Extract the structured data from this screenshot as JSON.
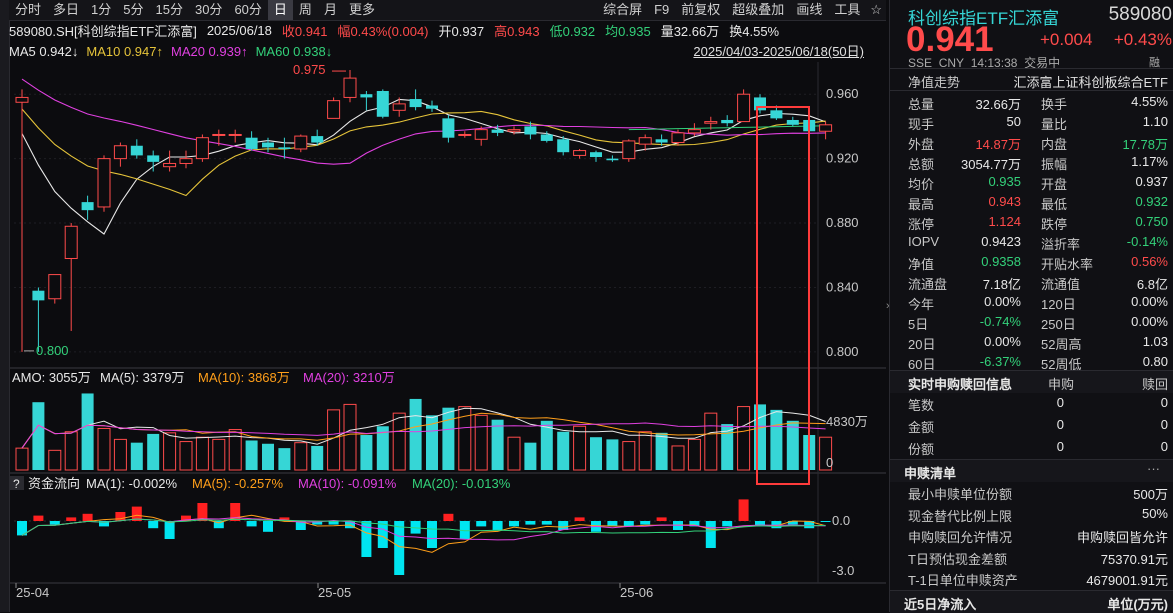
{
  "toolbar": {
    "left": [
      "分时",
      "多日",
      "1分",
      "5分",
      "15分",
      "30分",
      "60分",
      "日",
      "周",
      "月",
      "更多"
    ],
    "active_index": 7,
    "right": [
      "综合屏",
      "F9",
      "前复权",
      "超级叠加",
      "画线",
      "工具"
    ],
    "star": "☆"
  },
  "info": {
    "code_name": "589080.SH[科创综指ETF汇添富]",
    "date": "2025/06/18",
    "close": "收0.941",
    "change": "幅0.43%(0.004)",
    "open": "开0.937",
    "high": "高0.943",
    "low": "低0.932",
    "avg": "均0.935",
    "volume": "量32.66万",
    "turnover": "换4.55%"
  },
  "ma_bar": {
    "ma5": "MA5 0.942↓",
    "ma10": "MA10 0.947↑",
    "ma20": "MA20 0.939↑",
    "ma60": "MA60 0.938↓",
    "date_range": "2025/04/03-2025/06/18(50日)"
  },
  "price_axis": [
    "0.960",
    "0.920",
    "0.880",
    "0.840",
    "0.800"
  ],
  "annotations": {
    "high": "0.975",
    "low": "0.800"
  },
  "amo_bar": {
    "amo": "AMO: 3055万",
    "ma5": "MA(5): 3379万",
    "ma10": "MA(10): 3868万",
    "ma20": "MA(20): 3210万"
  },
  "amo_axis": [
    "4830万",
    "0"
  ],
  "flow_bar": {
    "q": "?",
    "title": "资金流向",
    "ma1": "MA(1): -0.002%",
    "ma5": "MA(5): -0.257%",
    "ma10": "MA(10): -0.091%",
    "ma20": "MA(20): -0.013%"
  },
  "flow_axis": [
    "0.0",
    "-3.0"
  ],
  "date_axis": [
    "25-04",
    "25-05",
    "25-06"
  ],
  "colors": {
    "up": "#ff4b4b",
    "down": "#36d6d6",
    "ma5": "#e8e8e8",
    "ma10": "#e6c43a",
    "ma20": "#e040e0",
    "ma60": "#33d17a",
    "highlight": "#ff3b3b"
  },
  "chart_data": {
    "type": "candlestick",
    "ylim": [
      0.79,
      0.98
    ],
    "candles": [
      {
        "o": 0.955,
        "h": 0.963,
        "l": 0.8,
        "c": 0.958
      },
      {
        "o": 0.838,
        "h": 0.84,
        "l": 0.8,
        "c": 0.832
      },
      {
        "o": 0.833,
        "h": 0.847,
        "l": 0.83,
        "c": 0.848
      },
      {
        "o": 0.858,
        "h": 0.88,
        "l": 0.813,
        "c": 0.878
      },
      {
        "o": 0.893,
        "h": 0.897,
        "l": 0.882,
        "c": 0.888
      },
      {
        "o": 0.89,
        "h": 0.922,
        "l": 0.887,
        "c": 0.92
      },
      {
        "o": 0.92,
        "h": 0.93,
        "l": 0.915,
        "c": 0.928
      },
      {
        "o": 0.928,
        "h": 0.932,
        "l": 0.92,
        "c": 0.922
      },
      {
        "o": 0.922,
        "h": 0.925,
        "l": 0.912,
        "c": 0.918
      },
      {
        "o": 0.915,
        "h": 0.925,
        "l": 0.912,
        "c": 0.917
      },
      {
        "o": 0.917,
        "h": 0.925,
        "l": 0.914,
        "c": 0.92
      },
      {
        "o": 0.92,
        "h": 0.935,
        "l": 0.918,
        "c": 0.933
      },
      {
        "o": 0.935,
        "h": 0.938,
        "l": 0.928,
        "c": 0.935
      },
      {
        "o": 0.935,
        "h": 0.938,
        "l": 0.93,
        "c": 0.935
      },
      {
        "o": 0.933,
        "h": 0.937,
        "l": 0.925,
        "c": 0.926
      },
      {
        "o": 0.93,
        "h": 0.933,
        "l": 0.924,
        "c": 0.927
      },
      {
        "o": 0.927,
        "h": 0.933,
        "l": 0.92,
        "c": 0.926
      },
      {
        "o": 0.926,
        "h": 0.935,
        "l": 0.924,
        "c": 0.934
      },
      {
        "o": 0.934,
        "h": 0.938,
        "l": 0.928,
        "c": 0.93
      },
      {
        "o": 0.945,
        "h": 0.958,
        "l": 0.945,
        "c": 0.956
      },
      {
        "o": 0.958,
        "h": 0.975,
        "l": 0.955,
        "c": 0.97
      },
      {
        "o": 0.96,
        "h": 0.962,
        "l": 0.95,
        "c": 0.958
      },
      {
        "o": 0.962,
        "h": 0.963,
        "l": 0.945,
        "c": 0.946
      },
      {
        "o": 0.95,
        "h": 0.958,
        "l": 0.946,
        "c": 0.954
      },
      {
        "o": 0.957,
        "h": 0.963,
        "l": 0.95,
        "c": 0.952
      },
      {
        "o": 0.953,
        "h": 0.956,
        "l": 0.949,
        "c": 0.951
      },
      {
        "o": 0.945,
        "h": 0.947,
        "l": 0.93,
        "c": 0.933
      },
      {
        "o": 0.935,
        "h": 0.937,
        "l": 0.933,
        "c": 0.935
      },
      {
        "o": 0.932,
        "h": 0.94,
        "l": 0.928,
        "c": 0.938
      },
      {
        "o": 0.938,
        "h": 0.941,
        "l": 0.934,
        "c": 0.936
      },
      {
        "o": 0.937,
        "h": 0.94,
        "l": 0.935,
        "c": 0.938
      },
      {
        "o": 0.94,
        "h": 0.943,
        "l": 0.932,
        "c": 0.935
      },
      {
        "o": 0.935,
        "h": 0.937,
        "l": 0.93,
        "c": 0.931
      },
      {
        "o": 0.932,
        "h": 0.934,
        "l": 0.922,
        "c": 0.924
      },
      {
        "o": 0.922,
        "h": 0.926,
        "l": 0.92,
        "c": 0.925
      },
      {
        "o": 0.924,
        "h": 0.925,
        "l": 0.918,
        "c": 0.921
      },
      {
        "o": 0.92,
        "h": 0.922,
        "l": 0.918,
        "c": 0.919
      },
      {
        "o": 0.92,
        "h": 0.932,
        "l": 0.918,
        "c": 0.931
      },
      {
        "o": 0.929,
        "h": 0.935,
        "l": 0.925,
        "c": 0.933
      },
      {
        "o": 0.932,
        "h": 0.935,
        "l": 0.928,
        "c": 0.93
      },
      {
        "o": 0.93,
        "h": 0.938,
        "l": 0.928,
        "c": 0.936
      },
      {
        "o": 0.936,
        "h": 0.942,
        "l": 0.934,
        "c": 0.938
      },
      {
        "o": 0.942,
        "h": 0.946,
        "l": 0.938,
        "c": 0.943
      },
      {
        "o": 0.944,
        "h": 0.947,
        "l": 0.94,
        "c": 0.942
      },
      {
        "o": 0.943,
        "h": 0.963,
        "l": 0.943,
        "c": 0.96
      },
      {
        "o": 0.958,
        "h": 0.96,
        "l": 0.948,
        "c": 0.95
      },
      {
        "o": 0.95,
        "h": 0.953,
        "l": 0.944,
        "c": 0.945
      },
      {
        "o": 0.944,
        "h": 0.946,
        "l": 0.94,
        "c": 0.941
      },
      {
        "o": 0.944,
        "h": 0.948,
        "l": 0.936,
        "c": 0.937
      },
      {
        "o": 0.937,
        "h": 0.943,
        "l": 0.932,
        "c": 0.941
      }
    ],
    "amo": [
      20,
      62,
      18,
      35,
      70,
      38,
      28,
      25,
      33,
      34,
      26,
      30,
      28,
      37,
      27,
      24,
      20,
      25,
      22,
      55,
      60,
      32,
      40,
      52,
      65,
      50,
      57,
      58,
      50,
      46,
      30,
      25,
      45,
      35,
      40,
      30,
      28,
      26,
      35,
      34,
      22,
      28,
      52,
      42,
      58,
      60,
      55,
      45,
      32,
      30
    ],
    "flow": [
      -0.8,
      0.3,
      -0.2,
      0.2,
      0.4,
      -0.3,
      0.5,
      0.8,
      -0.4,
      -1.0,
      0.3,
      1.0,
      -0.4,
      1.0,
      -0.3,
      -0.6,
      0.2,
      -0.5,
      -0.2,
      -0.2,
      -0.4,
      -2.0,
      -1.5,
      -3.0,
      -0.7,
      -1.5,
      0.4,
      -1.0,
      -0.3,
      -0.5,
      -0.3,
      -0.2,
      -0.2,
      -0.5,
      0.2,
      -0.6,
      -0.3,
      -0.3,
      -0.2,
      0.2,
      -0.5,
      -0.3,
      -1.5,
      -0.3,
      1.2,
      -0.3,
      -0.4,
      -0.2,
      -0.4,
      -0.002
    ]
  },
  "right_panel": {
    "title": "科创综指ETF汇添富",
    "code": "589080",
    "price": "0.941",
    "chg": "+0.004",
    "pct": "+0.43%",
    "exchange": "SSE",
    "currency": "CNY",
    "time": "14:13:38",
    "status": "交易中",
    "badge": "融",
    "nav_label": "净值走势",
    "nav_name": "汇添富上证科创板综合ETF",
    "rows": [
      {
        "l1": "总量",
        "v1": "32.66万",
        "c1": "white",
        "l2": "换手",
        "v2": "4.55%",
        "c2": "white"
      },
      {
        "l1": "现手",
        "v1": "50",
        "c1": "white",
        "l2": "量比",
        "v2": "1.10",
        "c2": "white"
      },
      {
        "l1": "外盘",
        "v1": "14.87万",
        "c1": "red",
        "l2": "内盘",
        "v2": "17.78万",
        "c2": "green"
      },
      {
        "l1": "总额",
        "v1": "3054.77万",
        "c1": "white",
        "l2": "振幅",
        "v2": "1.17%",
        "c2": "white"
      },
      {
        "l1": "均价",
        "v1": "0.935",
        "c1": "green",
        "l2": "开盘",
        "v2": "0.937",
        "c2": "white"
      },
      {
        "l1": "最高",
        "v1": "0.943",
        "c1": "red",
        "l2": "最低",
        "v2": "0.932",
        "c2": "green"
      },
      {
        "l1": "涨停",
        "v1": "1.124",
        "c1": "red",
        "l2": "跌停",
        "v2": "0.750",
        "c2": "green"
      },
      {
        "l1": "IOPV",
        "v1": "0.9423",
        "c1": "white",
        "l2": "溢折率",
        "v2": "-0.14%",
        "c2": "green"
      },
      {
        "l1": "净值",
        "v1": "0.9358",
        "c1": "green",
        "l2": "开贴水率",
        "v2": "0.56%",
        "c2": "red"
      },
      {
        "l1": "流通盘",
        "v1": "7.18亿",
        "c1": "white",
        "l2": "流通值",
        "v2": "6.8亿",
        "c2": "white"
      },
      {
        "l1": "今年",
        "v1": "0.00%",
        "c1": "white",
        "l2": "120日",
        "v2": "0.00%",
        "c2": "white"
      },
      {
        "l1": "5日",
        "v1": "-0.74%",
        "c1": "green",
        "l2": "250日",
        "v2": "0.00%",
        "c2": "white"
      },
      {
        "l1": "20日",
        "v1": "0.00%",
        "c1": "white",
        "l2": "52周高",
        "v2": "1.03",
        "c2": "white"
      },
      {
        "l1": "60日",
        "v1": "-6.37%",
        "c1": "green",
        "l2": "52周低",
        "v2": "0.80",
        "c2": "white"
      }
    ],
    "sg_title": "实时申购赎回信息",
    "sg_h1": "申购",
    "sg_h2": "赎回",
    "sg_rows": [
      {
        "l": "笔数",
        "a": "0",
        "b": "0"
      },
      {
        "l": "金额",
        "a": "0",
        "b": "0"
      },
      {
        "l": "份额",
        "a": "0",
        "b": "0"
      }
    ],
    "list_title": "申赎清单",
    "list_more": "···",
    "list_rows": [
      {
        "l": "最小申赎单位份额",
        "v": "500万"
      },
      {
        "l": "现金替代比例上限",
        "v": "50%"
      },
      {
        "l": "申购赎回允许情况",
        "v": "申购赎回皆允许"
      },
      {
        "l": "T日预估现金差额",
        "v": "75370.91元"
      },
      {
        "l": "T-1日单位申赎资产",
        "v": "4679001.91元"
      }
    ],
    "net_title": "近5日净流入",
    "net_unit": "单位(万元)"
  },
  "collapse_icon": "»"
}
